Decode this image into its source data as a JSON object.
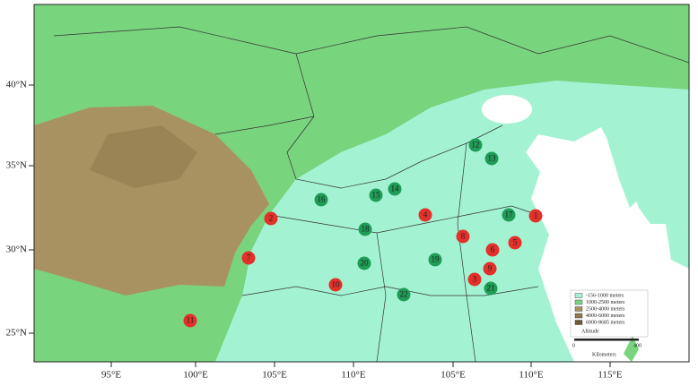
{
  "map": {
    "lat_labels": [
      "40°N",
      "35°N",
      "30°N",
      "25°N"
    ],
    "lon_labels": [
      "95°E",
      "100°E",
      "105°E",
      "110°E",
      "105°E",
      "110°E",
      "115°E"
    ],
    "sites": [
      {
        "label": "1",
        "color": "#e3302a"
      },
      {
        "label": "2",
        "color": "#e3302a"
      },
      {
        "label": "3",
        "color": "#e3302a"
      },
      {
        "label": "4",
        "color": "#e3302a"
      },
      {
        "label": "5",
        "color": "#e3302a"
      },
      {
        "label": "6",
        "color": "#e3302a"
      },
      {
        "label": "7",
        "color": "#e3302a"
      },
      {
        "label": "8",
        "color": "#e3302a"
      },
      {
        "label": "9",
        "color": "#e3302a"
      },
      {
        "label": "10",
        "color": "#e3302a"
      },
      {
        "label": "11",
        "color": "#e3302a"
      },
      {
        "label": "12",
        "color": "#1f9d57"
      },
      {
        "label": "13",
        "color": "#1f9d57"
      },
      {
        "label": "14",
        "color": "#1f9d57"
      },
      {
        "label": "15",
        "color": "#1f9d57"
      },
      {
        "label": "16",
        "color": "#1f9d57"
      },
      {
        "label": "17",
        "color": "#1f9d57"
      },
      {
        "label": "18",
        "color": "#1f9d57"
      },
      {
        "label": "19",
        "color": "#1f9d57"
      },
      {
        "label": "20",
        "color": "#1f9d57"
      },
      {
        "label": "21",
        "color": "#1f9d57"
      },
      {
        "label": "22",
        "color": "#1f9d57"
      }
    ],
    "legend": {
      "entries": [
        {
          "label": "-156-1000 meters",
          "color": "#a3f3d3"
        },
        {
          "label": "1000-2500 meters",
          "color": "#79d47e"
        },
        {
          "label": "2500-4000 meters",
          "color": "#a99262"
        },
        {
          "label": "4000-6000 meters",
          "color": "#917a4c"
        },
        {
          "label": "6000-8685 meters",
          "color": "#6e5a36"
        }
      ],
      "title": "Altitude"
    },
    "scale": {
      "start": "0",
      "end": "400",
      "unit": "Kilometers"
    }
  }
}
